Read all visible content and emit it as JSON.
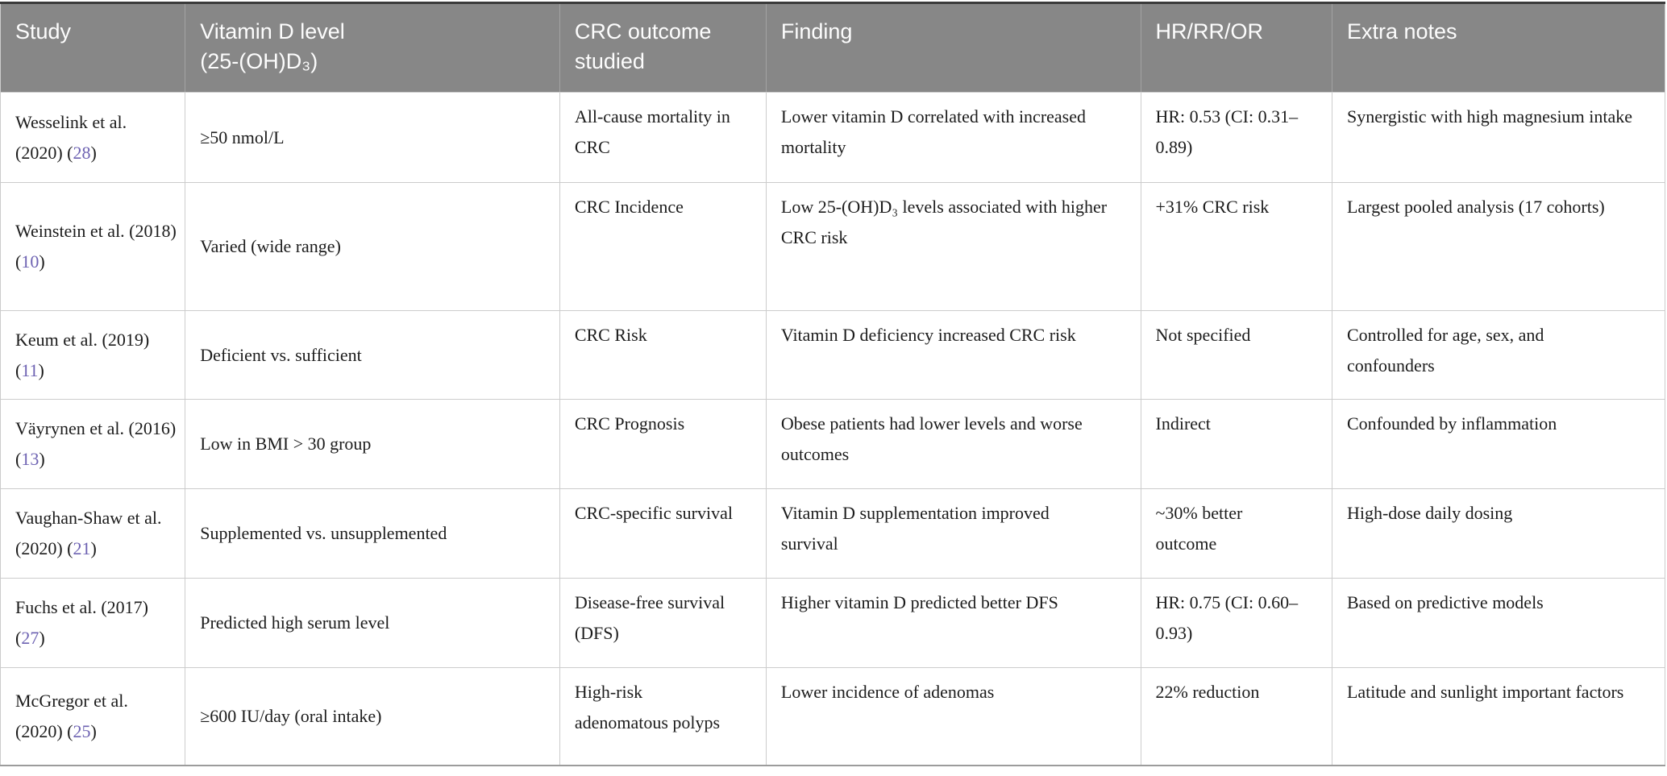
{
  "table": {
    "citation": {
      "open": "(",
      "close": ")"
    },
    "columns": [
      {
        "id": "study",
        "label": "Study"
      },
      {
        "id": "vitamin_d_level",
        "label": "Vitamin D level\n(25-(OH)D₃)"
      },
      {
        "id": "crc_outcome",
        "label": "CRC outcome\nstudied"
      },
      {
        "id": "finding",
        "label": "Finding"
      },
      {
        "id": "hr_rr_or",
        "label": "HR/RR/OR"
      },
      {
        "id": "extra_notes",
        "label": "Extra notes"
      }
    ],
    "rows": [
      {
        "study": "Wesselink et al. (2020)",
        "reference": "28",
        "vitamin_d_level": "≥50 nmol/L",
        "crc_outcome": "All-cause mortality in CRC",
        "finding": "Lower vitamin D correlated with increased mortality",
        "hr_rr_or": "HR: 0.53 (CI: 0.31–0.89)",
        "extra_notes": "Synergistic with high magnesium intake"
      },
      {
        "study": "Weinstein et al. (2018)",
        "reference": "10",
        "vitamin_d_level": "Varied (wide range)",
        "crc_outcome": "CRC Incidence",
        "finding": "Low 25-(OH)D₃ levels associated with higher CRC risk",
        "hr_rr_or": "+31% CRC risk",
        "extra_notes": "Largest pooled analysis (17 cohorts)"
      },
      {
        "study": "Keum et al. (2019)",
        "reference": "11",
        "vitamin_d_level": "Deficient vs. sufficient",
        "crc_outcome": "CRC Risk",
        "finding": "Vitamin D deficiency increased CRC risk",
        "hr_rr_or": "Not specified",
        "extra_notes": "Controlled for age, sex, and confounders"
      },
      {
        "study": "Väyrynen et al. (2016)",
        "reference": "13",
        "vitamin_d_level": "Low in BMI > 30 group",
        "crc_outcome": "CRC Prognosis",
        "finding": "Obese patients had lower levels and worse outcomes",
        "hr_rr_or": "Indirect",
        "extra_notes": "Confounded by inflammation"
      },
      {
        "study": "Vaughan-Shaw et al. (2020)",
        "reference": "21",
        "vitamin_d_level": "Supplemented vs. unsupplemented",
        "crc_outcome": "CRC-specific survival",
        "finding": "Vitamin D supplementation improved survival",
        "hr_rr_or": "~30% better outcome",
        "extra_notes": "High-dose daily dosing"
      },
      {
        "study": "Fuchs et al. (2017)",
        "reference": "27",
        "vitamin_d_level": "Predicted high serum level",
        "crc_outcome": "Disease-free survival (DFS)",
        "finding": "Higher vitamin D predicted better DFS",
        "hr_rr_or": "HR: 0.75 (CI: 0.60–0.93)",
        "extra_notes": "Based on predictive models"
      },
      {
        "study": "McGregor et al. (2020)",
        "reference": "25",
        "vitamin_d_level": "≥600 IU/day (oral intake)",
        "crc_outcome": "High-risk adenomatous polyps",
        "finding": "Lower incidence of adenomas",
        "hr_rr_or": "22% reduction",
        "extra_notes": "Latitude and sunlight important factors"
      }
    ],
    "colors": {
      "header_bg": "#878787",
      "header_text": "#fdfdfd",
      "body_text": "#1c1c1c",
      "reference_link": "#6d62b2",
      "cell_border": "#cccccc",
      "header_divider": "#a3a3a3",
      "table_top_border": "#3a3a3a",
      "table_bottom_border": "#9c9c9c"
    }
  }
}
